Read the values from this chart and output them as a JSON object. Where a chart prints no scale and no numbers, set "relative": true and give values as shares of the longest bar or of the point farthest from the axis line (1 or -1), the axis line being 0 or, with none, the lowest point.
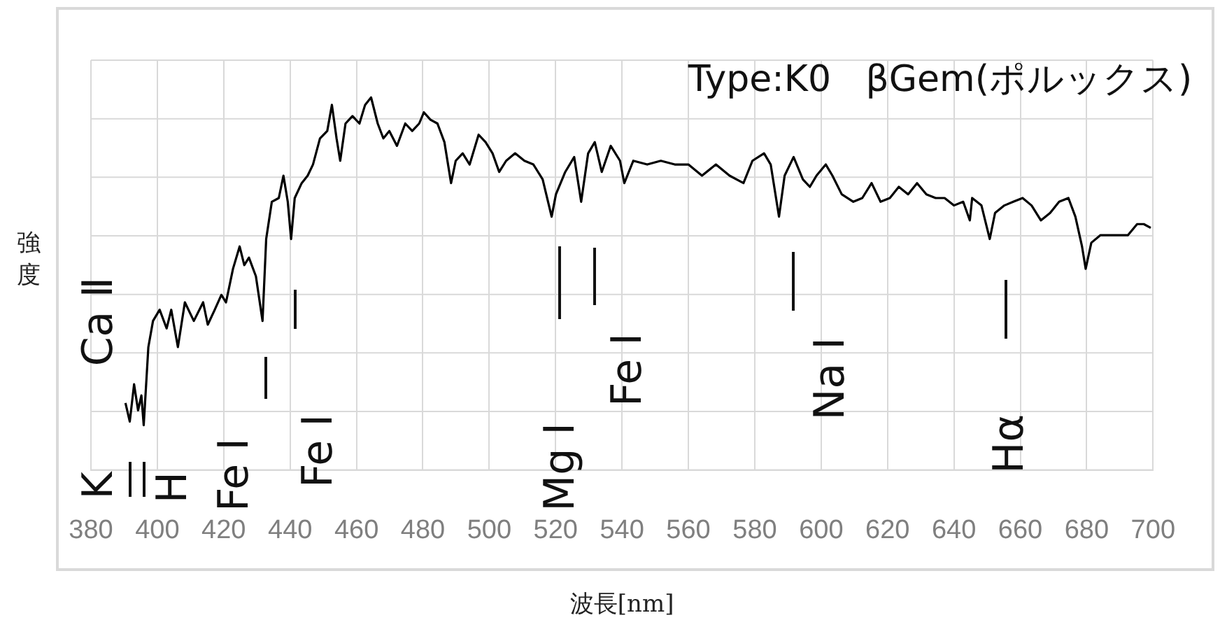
{
  "chart_data": {
    "type": "line",
    "title": "Type:K0   βGem(ポルックス)",
    "xlabel": "波長[nm]",
    "ylabel": "強度",
    "relative": true,
    "grid": true,
    "legend": false,
    "marker": "none",
    "line_style": "solid",
    "xlim": [
      380,
      700
    ],
    "xticks": [
      380,
      400,
      420,
      440,
      460,
      480,
      500,
      520,
      540,
      560,
      580,
      600,
      620,
      640,
      660,
      680,
      700
    ],
    "x": [
      390.4,
      391.7,
      393.0,
      394.2,
      395.2,
      395.9,
      397.3,
      398.7,
      400.7,
      402.8,
      404.2,
      406.2,
      408.3,
      411.0,
      413.8,
      415.2,
      417.3,
      419.3,
      420.7,
      422.8,
      424.8,
      426.2,
      427.6,
      429.7,
      431.7,
      432.8,
      434.5,
      436.6,
      438.0,
      439.3,
      440.3,
      441.4,
      443.5,
      445.3,
      446.9,
      449.0,
      451.2,
      452.6,
      454.0,
      455.1,
      456.7,
      458.8,
      460.9,
      462.6,
      464.4,
      466.4,
      468.1,
      469.9,
      472.2,
      474.7,
      476.8,
      478.9,
      480.3,
      482.3,
      484.4,
      486.5,
      488.5,
      489.9,
      492.0,
      494.1,
      496.8,
      498.9,
      501.0,
      503.0,
      505.1,
      507.8,
      510.6,
      513.3,
      516.1,
      518.8,
      520.1,
      522.9,
      525.6,
      527.7,
      529.8,
      531.8,
      533.9,
      536.6,
      539.4,
      540.7,
      543.4,
      547.6,
      551.7,
      555.9,
      560.0,
      564.1,
      568.3,
      572.4,
      576.6,
      579.3,
      582.8,
      584.8,
      587.3,
      589.0,
      591.7,
      594.5,
      596.6,
      598.6,
      601.4,
      603.4,
      606.2,
      609.7,
      612.4,
      615.2,
      617.9,
      620.7,
      623.4,
      626.2,
      628.9,
      631.7,
      634.5,
      637.2,
      640.0,
      642.8,
      644.8,
      645.5,
      648.3,
      650.8,
      652.4,
      655.2,
      657.9,
      660.7,
      663.4,
      666.2,
      669.0,
      671.7,
      674.5,
      676.6,
      678.6,
      679.7,
      681.4,
      684.1,
      686.9,
      689.7,
      692.4,
      695.2,
      697.2,
      699.3
    ],
    "series": [
      {
        "color": "#000000",
        "values": [
          0.18,
          0.13,
          0.23,
          0.16,
          0.2,
          0.12,
          0.33,
          0.4,
          0.43,
          0.38,
          0.43,
          0.33,
          0.45,
          0.4,
          0.45,
          0.39,
          0.43,
          0.47,
          0.45,
          0.54,
          0.6,
          0.55,
          0.57,
          0.52,
          0.4,
          0.62,
          0.72,
          0.73,
          0.79,
          0.72,
          0.62,
          0.73,
          0.77,
          0.79,
          0.82,
          0.89,
          0.91,
          0.98,
          0.89,
          0.83,
          0.93,
          0.95,
          0.93,
          0.98,
          1.0,
          0.93,
          0.89,
          0.91,
          0.87,
          0.93,
          0.91,
          0.93,
          0.96,
          0.94,
          0.93,
          0.88,
          0.77,
          0.83,
          0.85,
          0.82,
          0.9,
          0.88,
          0.85,
          0.8,
          0.83,
          0.85,
          0.83,
          0.82,
          0.78,
          0.68,
          0.74,
          0.8,
          0.84,
          0.72,
          0.85,
          0.88,
          0.8,
          0.87,
          0.83,
          0.77,
          0.83,
          0.82,
          0.83,
          0.82,
          0.82,
          0.79,
          0.82,
          0.79,
          0.77,
          0.83,
          0.85,
          0.82,
          0.68,
          0.79,
          0.84,
          0.78,
          0.76,
          0.79,
          0.82,
          0.79,
          0.74,
          0.72,
          0.73,
          0.77,
          0.72,
          0.73,
          0.76,
          0.74,
          0.77,
          0.74,
          0.73,
          0.73,
          0.71,
          0.72,
          0.67,
          0.73,
          0.71,
          0.62,
          0.69,
          0.71,
          0.72,
          0.73,
          0.71,
          0.67,
          0.69,
          0.72,
          0.73,
          0.68,
          0.6,
          0.54,
          0.61,
          0.63,
          0.63,
          0.63,
          0.63,
          0.66,
          0.66,
          0.65
        ]
      }
    ],
    "annotations": [
      "Ca Ⅱ",
      "K",
      "H",
      "Fe Ⅰ",
      "Fe Ⅰ",
      "Mg Ⅰ",
      "Fe Ⅰ",
      "Na Ⅰ",
      "Hα"
    ]
  }
}
